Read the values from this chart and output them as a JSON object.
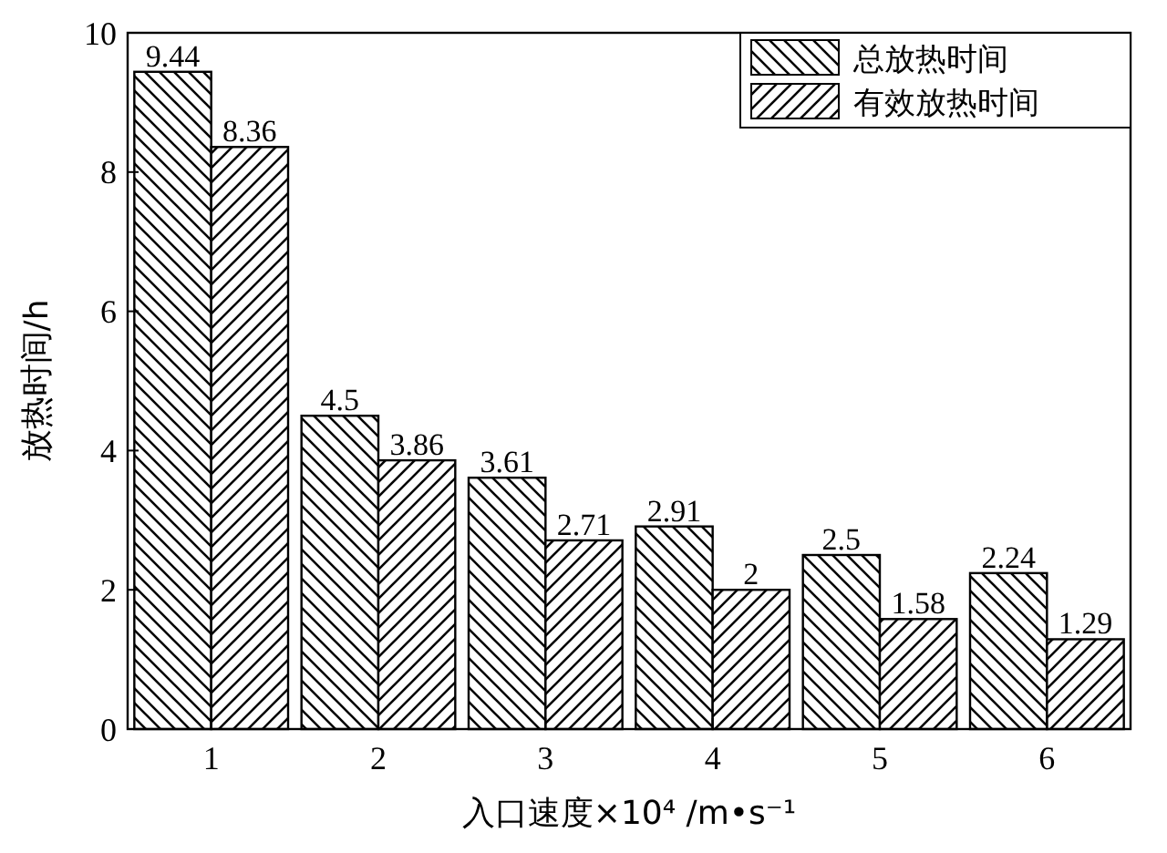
{
  "chart_data": {
    "type": "bar",
    "xlabel": "入口速度×10⁴ /m•s⁻¹",
    "ylabel": "放热时间/h",
    "categories": [
      "1",
      "2",
      "3",
      "4",
      "5",
      "6"
    ],
    "series": [
      {
        "name": "总放热时间",
        "color": "#000000",
        "values": [
          9.44,
          4.5,
          3.61,
          2.91,
          2.5,
          2.24
        ]
      },
      {
        "name": "有效放热时间",
        "color": "#000000",
        "values": [
          8.36,
          3.86,
          2.71,
          2,
          1.58,
          1.29
        ]
      }
    ],
    "ylim": [
      0,
      10
    ],
    "yticks": [
      0,
      2,
      4,
      6,
      8,
      10
    ],
    "data_labels": true,
    "legend": "top right",
    "grid": false
  }
}
